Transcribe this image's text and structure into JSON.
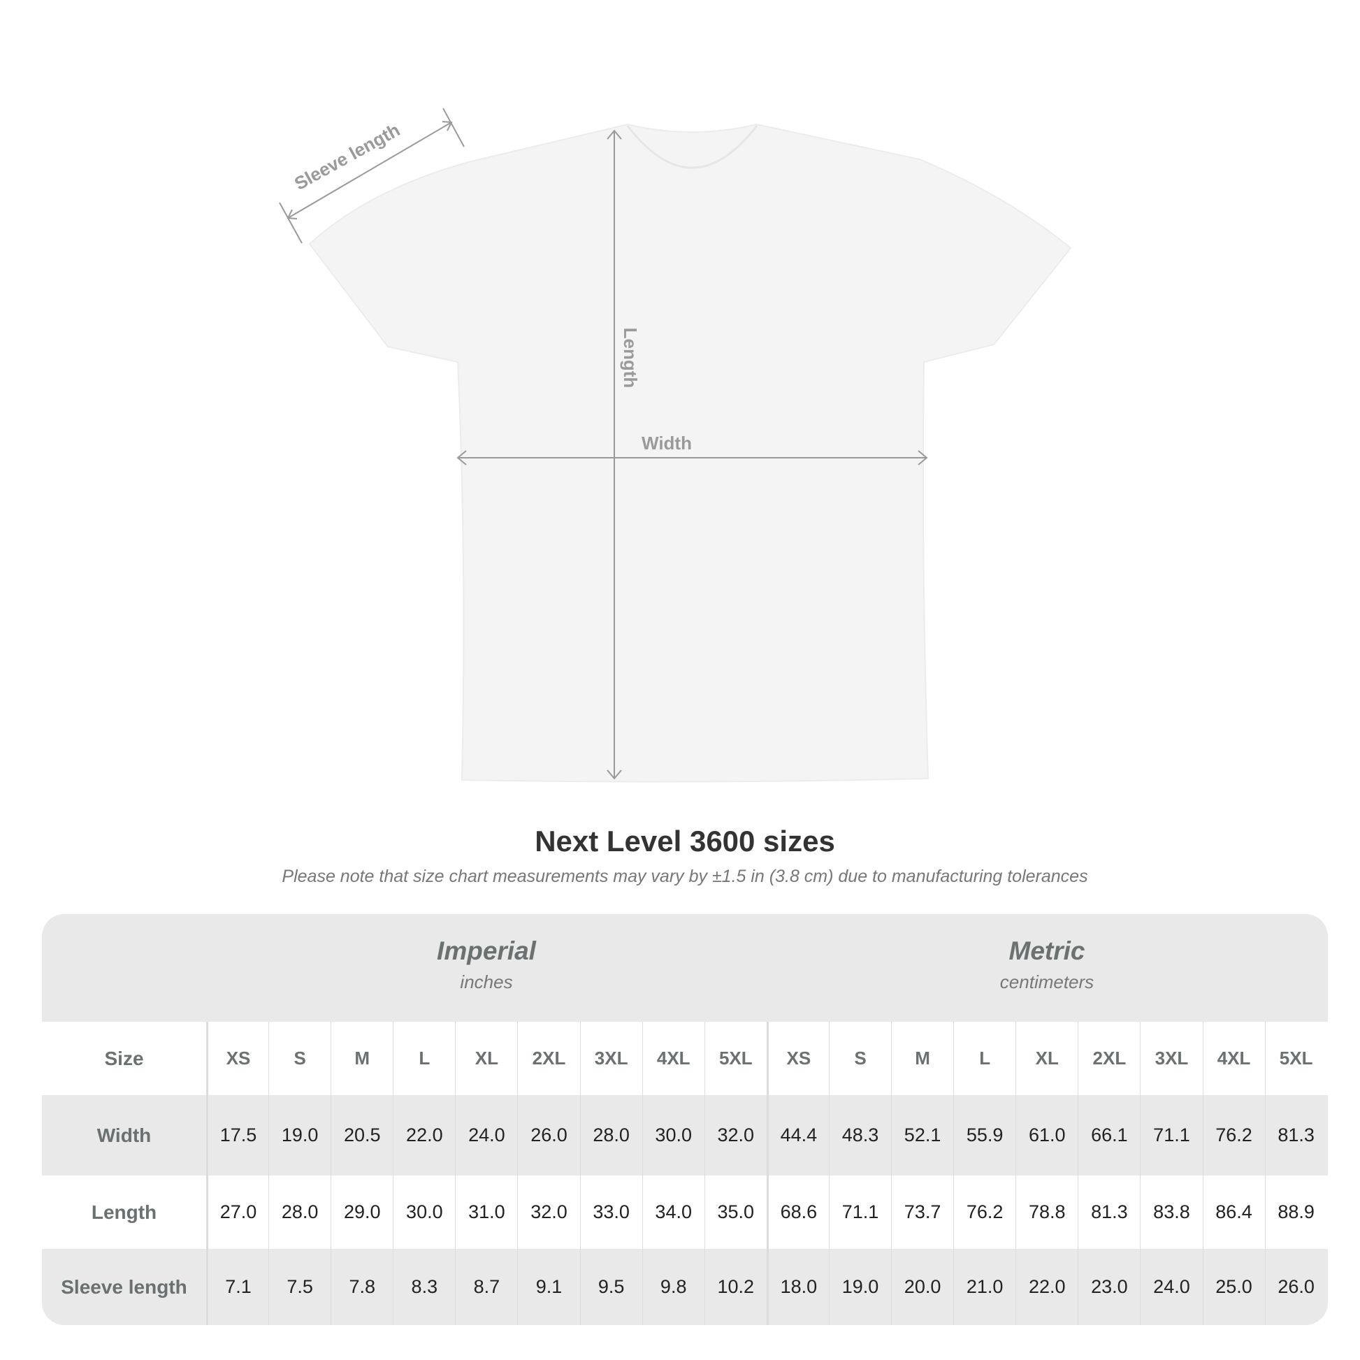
{
  "diagram": {
    "labels": {
      "sleeve": "Sleeve length",
      "length": "Length",
      "width": "Width"
    },
    "shirt_color": "#f4f4f4",
    "measure_line_color": "#9a9a9a"
  },
  "title": "Next Level 3600 sizes",
  "subtitle": "Please note that size chart measurements may vary by ±1.5 in (3.8 cm) due to manufacturing tolerances",
  "table": {
    "imperial": {
      "name": "Imperial",
      "unit": "inches"
    },
    "metric": {
      "name": "Metric",
      "unit": "centimeters"
    },
    "size_label": "Size",
    "sizes": [
      "XS",
      "S",
      "M",
      "L",
      "XL",
      "2XL",
      "3XL",
      "4XL",
      "5XL"
    ],
    "rows": [
      {
        "label": "Width",
        "imperial": [
          "17.5",
          "19.0",
          "20.5",
          "22.0",
          "24.0",
          "26.0",
          "28.0",
          "30.0",
          "32.0"
        ],
        "metric": [
          "44.4",
          "48.3",
          "52.1",
          "55.9",
          "61.0",
          "66.1",
          "71.1",
          "76.2",
          "81.3"
        ]
      },
      {
        "label": "Length",
        "imperial": [
          "27.0",
          "28.0",
          "29.0",
          "30.0",
          "31.0",
          "32.0",
          "33.0",
          "34.0",
          "35.0"
        ],
        "metric": [
          "68.6",
          "71.1",
          "73.7",
          "76.2",
          "78.8",
          "81.3",
          "83.8",
          "86.4",
          "88.9"
        ]
      },
      {
        "label": "Sleeve length",
        "imperial": [
          "7.1",
          "7.5",
          "7.8",
          "8.3",
          "8.7",
          "9.1",
          "9.5",
          "9.8",
          "10.2"
        ],
        "metric": [
          "18.0",
          "19.0",
          "20.0",
          "21.0",
          "22.0",
          "23.0",
          "24.0",
          "25.0",
          "26.0"
        ]
      }
    ]
  }
}
